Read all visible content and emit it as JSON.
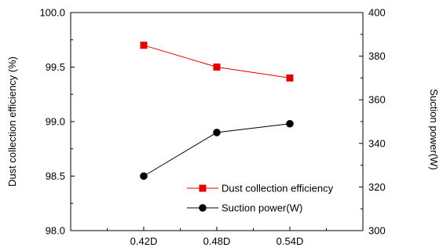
{
  "chart_data": {
    "type": "line",
    "categories": [
      "0.42D",
      "0.48D",
      "0.54D"
    ],
    "title": "",
    "xlabel": "",
    "ylabel_left": "Dust collection efficiency (%)",
    "ylabel_right": "Suction power(W)",
    "ylim_left": [
      98.0,
      100.0
    ],
    "ylim_right": [
      300,
      400
    ],
    "yticks_left": [
      "98.0",
      "98.5",
      "99.0",
      "99.5",
      "100.0"
    ],
    "yticks_right": [
      "300",
      "320",
      "340",
      "360",
      "380",
      "400"
    ],
    "grid": false,
    "legend_position": "bottom-right",
    "series": [
      {
        "name": "Dust collection efficiency",
        "axis": "left",
        "marker": "square",
        "color": "#e00000",
        "values": [
          99.7,
          99.5,
          99.4
        ]
      },
      {
        "name": "Suction power(W)",
        "axis": "right",
        "marker": "circle",
        "color": "#000000",
        "values": [
          325,
          345,
          349
        ]
      }
    ]
  }
}
